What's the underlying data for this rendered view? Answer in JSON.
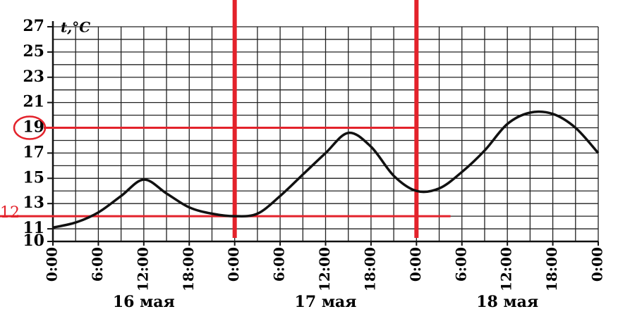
{
  "chart_data": {
    "type": "line",
    "y_label": "t,°C",
    "x": [
      0,
      3,
      6,
      9,
      12,
      15,
      18,
      21,
      24,
      27,
      30,
      33,
      36,
      39,
      42,
      45,
      48,
      51,
      54,
      57,
      60,
      63,
      66,
      69,
      72
    ],
    "series": [
      {
        "color": "#111111",
        "values": [
          11.1,
          11.5,
          12.3,
          13.6,
          14.9,
          13.8,
          12.7,
          12.2,
          12.0,
          12.2,
          13.6,
          15.3,
          17.0,
          18.6,
          17.5,
          15.2,
          14.0,
          14.2,
          15.5,
          17.2,
          19.3,
          20.2,
          20.1,
          19.0,
          17.0
        ]
      }
    ],
    "xlim": [
      0,
      72
    ],
    "xticks": [
      {
        "value": 0,
        "label": "0:00"
      },
      {
        "value": 6,
        "label": "6:00"
      },
      {
        "value": 12,
        "label": "12:00"
      },
      {
        "value": 18,
        "label": "18:00"
      },
      {
        "value": 24,
        "label": "0:00"
      },
      {
        "value": 30,
        "label": "6:00"
      },
      {
        "value": 36,
        "label": "12:00"
      },
      {
        "value": 42,
        "label": "18:00"
      },
      {
        "value": 48,
        "label": "0:00"
      },
      {
        "value": 54,
        "label": "6:00"
      },
      {
        "value": 60,
        "label": "12:00"
      },
      {
        "value": 66,
        "label": "18:00"
      },
      {
        "value": 72,
        "label": "0:00"
      }
    ],
    "xgrid": [
      0,
      3,
      6,
      9,
      12,
      15,
      18,
      21,
      24,
      27,
      30,
      33,
      36,
      39,
      42,
      45,
      48,
      51,
      54,
      57,
      60,
      63,
      66,
      69,
      72
    ],
    "ylim": [
      10,
      27
    ],
    "yticks": [
      10,
      11,
      13,
      15,
      17,
      19,
      21,
      23,
      25,
      27
    ],
    "ygrid": [
      10,
      11,
      12,
      13,
      14,
      15,
      16,
      17,
      18,
      19,
      20,
      21,
      22,
      23,
      24,
      25,
      26,
      27
    ],
    "day_labels": [
      "16 мая",
      "17 мая",
      "18 мая"
    ],
    "annotation_color": "#e3222b",
    "vlines": [
      24,
      48
    ],
    "hlines": [
      {
        "y": 19,
        "x_end": 48
      },
      {
        "y": 12,
        "x_end": 52.5,
        "label": "12"
      }
    ]
  }
}
